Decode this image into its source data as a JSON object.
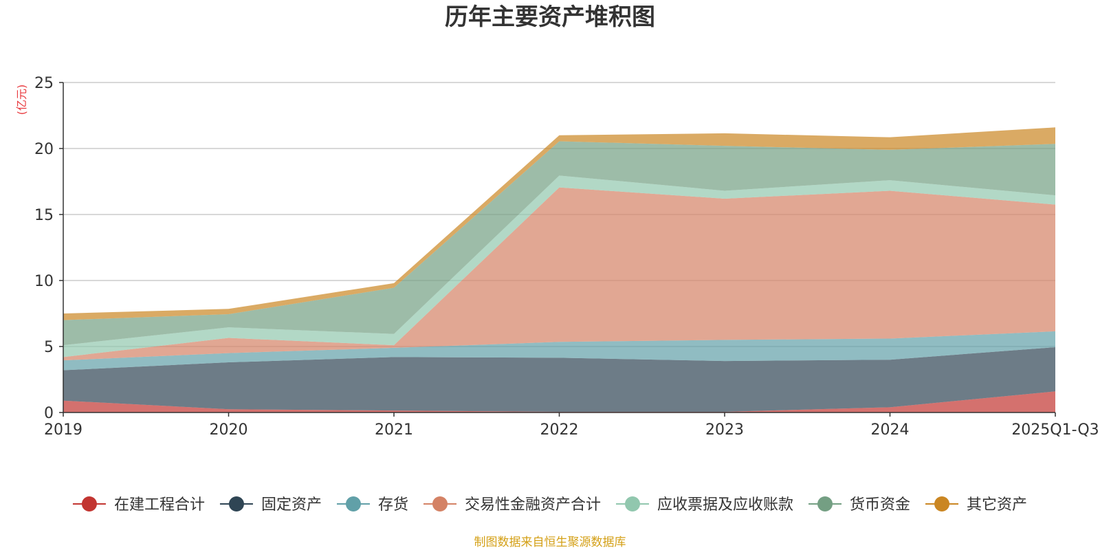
{
  "colors": {
    "unit": "#e8383d",
    "source": "#d4a017",
    "grid": "#cccccc",
    "axis": "#333333"
  },
  "chart_data": {
    "type": "area",
    "stacked": true,
    "title": "历年主要资产堆积图",
    "unit_label": "(亿元)",
    "source": "制图数据来自恒生聚源数据库",
    "categories": [
      "2019",
      "2020",
      "2021",
      "2022",
      "2023",
      "2024",
      "2025Q1-Q3"
    ],
    "ylim": [
      0,
      25
    ],
    "yticks": [
      0,
      5,
      10,
      15,
      20,
      25
    ],
    "grid": true,
    "legend_position": "bottom",
    "series": [
      {
        "name": "在建工程合计",
        "color": "#c23531",
        "values": [
          0.9,
          0.25,
          0.15,
          0.05,
          0.05,
          0.4,
          1.6
        ]
      },
      {
        "name": "固定资产",
        "color": "#2f4554",
        "values": [
          2.3,
          3.55,
          4.05,
          4.1,
          3.85,
          3.6,
          3.35
        ]
      },
      {
        "name": "存货",
        "color": "#61a0a8",
        "values": [
          0.75,
          0.7,
          0.7,
          1.2,
          1.6,
          1.6,
          1.2
        ]
      },
      {
        "name": "交易性金融资产合计",
        "color": "#d48265",
        "values": [
          0.25,
          1.15,
          0.2,
          11.7,
          10.7,
          11.2,
          9.6
        ]
      },
      {
        "name": "应收票据及应收账款",
        "color": "#91c7ae",
        "values": [
          0.9,
          0.8,
          0.85,
          0.9,
          0.6,
          0.8,
          0.7
        ]
      },
      {
        "name": "货币资金",
        "color": "#749f83",
        "values": [
          1.9,
          1.0,
          3.5,
          2.6,
          3.4,
          2.3,
          3.9
        ]
      },
      {
        "name": "其它资产",
        "color": "#ca8622",
        "values": [
          0.5,
          0.4,
          0.35,
          0.45,
          0.95,
          0.95,
          1.25
        ]
      }
    ]
  }
}
